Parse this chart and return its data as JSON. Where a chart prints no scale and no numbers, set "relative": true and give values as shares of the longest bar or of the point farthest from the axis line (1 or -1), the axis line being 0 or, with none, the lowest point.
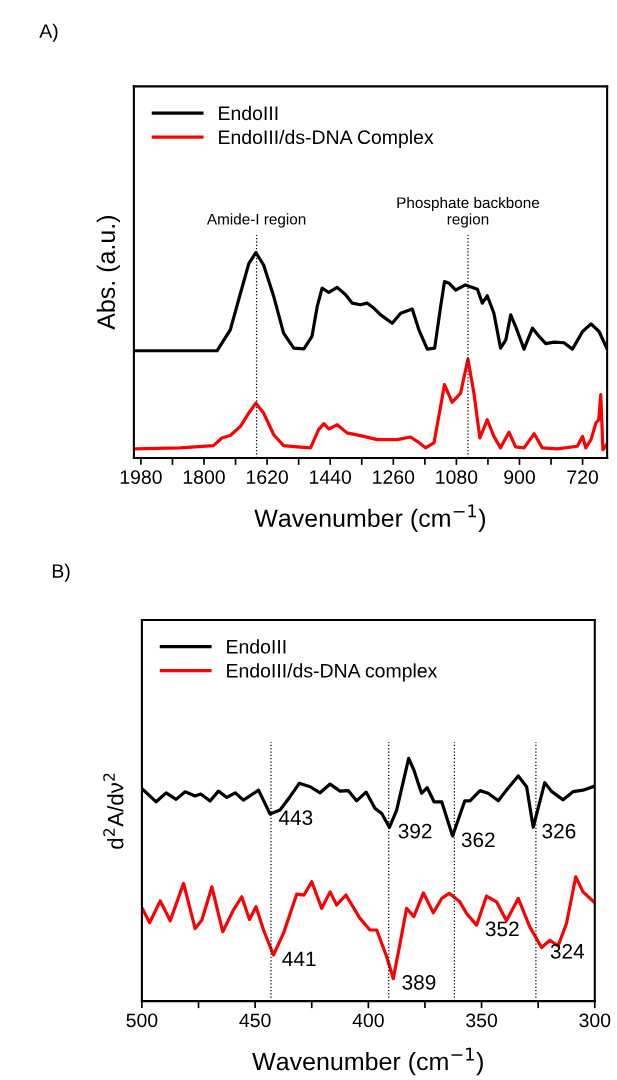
{
  "chart_data": [
    {
      "type": "line",
      "title": "A)",
      "xlabel": "Wavenumber (cm$^{−1}$)",
      "ylabel": "Abs. (a.u.)",
      "relative": true,
      "xlim": [
        2000,
        650
      ],
      "xticks": [
        1980,
        {
          "value": 1890,
          "label": null
        },
        1800,
        {
          "value": 1710,
          "label": null
        },
        1620,
        {
          "value": 1530,
          "label": null
        },
        1440,
        {
          "value": 1350,
          "label": null
        },
        1260,
        {
          "value": 1170,
          "label": null
        },
        1080,
        {
          "value": 990,
          "label": null
        },
        900,
        {
          "value": 810,
          "label": null
        },
        720
      ],
      "legend": "top left",
      "grid": false,
      "line_style": "solid",
      "ref_lines": [
        {
          "axis": "x",
          "value": 1650,
          "label": "Amide-I region",
          "line_style": "dotted",
          "color": "#000000"
        },
        {
          "axis": "x",
          "value": 1047,
          "label": "Phosphate backbone\nregion",
          "line_style": "dotted",
          "color": "#000000"
        }
      ],
      "series": [
        {
          "name": "EndoIII",
          "color": "#000000",
          "x": [
            1996,
            1763,
            1725,
            1696,
            1672,
            1652,
            1630,
            1601,
            1573,
            1544,
            1515,
            1492,
            1477,
            1463,
            1444,
            1420,
            1396,
            1377,
            1354,
            1334,
            1315,
            1296,
            1263,
            1239,
            1206,
            1187,
            1163,
            1142,
            1125,
            1114,
            1101,
            1082,
            1054,
            1020,
            1006,
            992,
            973,
            954,
            939,
            925,
            911,
            887,
            863,
            844,
            825,
            801,
            773,
            749,
            720,
            696,
            673,
            651
          ],
          "values": [
            0.522,
            0.522,
            0.624,
            0.802,
            0.948,
            1.0,
            0.94,
            0.786,
            0.608,
            0.535,
            0.531,
            0.592,
            0.738,
            0.827,
            0.806,
            0.831,
            0.795,
            0.754,
            0.746,
            0.754,
            0.729,
            0.697,
            0.656,
            0.705,
            0.725,
            0.624,
            0.53,
            0.535,
            0.737,
            0.859,
            0.851,
            0.818,
            0.843,
            0.822,
            0.754,
            0.79,
            0.705,
            0.535,
            0.575,
            0.697,
            0.64,
            0.53,
            0.632,
            0.592,
            0.557,
            0.564,
            0.561,
            0.53,
            0.616,
            0.653,
            0.616,
            0.535
          ]
        },
        {
          "name": "EndoIII/ds-DNA Complex",
          "color": "#ff0000",
          "x": [
            1996,
            1868,
            1773,
            1749,
            1725,
            1696,
            1672,
            1652,
            1630,
            1601,
            1573,
            1534,
            1496,
            1473,
            1458,
            1444,
            1420,
            1392,
            1344,
            1306,
            1249,
            1211,
            1192,
            1168,
            1144,
            1125,
            1114,
            1092,
            1068,
            1047,
            1030,
            1013,
            992,
            973,
            954,
            930,
            911,
            887,
            858,
            835,
            792,
            735,
            720,
            711,
            696,
            682,
            674,
            668,
            662,
            651
          ],
          "values": [
            0.044,
            0.049,
            0.06,
            0.097,
            0.109,
            0.154,
            0.219,
            0.267,
            0.219,
            0.113,
            0.06,
            0.054,
            0.049,
            0.138,
            0.167,
            0.141,
            0.162,
            0.122,
            0.105,
            0.089,
            0.089,
            0.102,
            0.081,
            0.049,
            0.073,
            0.251,
            0.357,
            0.271,
            0.316,
            0.481,
            0.316,
            0.097,
            0.186,
            0.105,
            0.049,
            0.125,
            0.054,
            0.049,
            0.118,
            0.049,
            0.044,
            0.057,
            0.105,
            0.049,
            0.089,
            0.17,
            0.186,
            0.308,
            0.04,
            0.065
          ]
        }
      ]
    },
    {
      "type": "line",
      "title": "B)",
      "xlabel": "Wavenumber (cm$^{−1}$)",
      "ylabel": "d$^{2}$A/dν$^{2}$",
      "relative": true,
      "xlim": [
        500,
        300
      ],
      "xticks": [
        500,
        {
          "value": 475,
          "label": null
        },
        450,
        {
          "value": 425,
          "label": null
        },
        400,
        {
          "value": 375,
          "label": null
        },
        350,
        {
          "value": 325,
          "label": null
        },
        300
      ],
      "legend": "top left",
      "grid": false,
      "line_style": "solid",
      "ref_lines": [
        {
          "axis": "x",
          "value": 443,
          "line_style": "dotted",
          "color": "#000000"
        },
        {
          "axis": "x",
          "value": 391,
          "line_style": "dotted",
          "color": "#000000"
        },
        {
          "axis": "x",
          "value": 362,
          "line_style": "dotted",
          "color": "#000000"
        },
        {
          "axis": "x",
          "value": 326,
          "line_style": "dotted",
          "color": "#000000"
        }
      ],
      "annotations": [
        {
          "text": "443",
          "x": 443.4,
          "y": 0.771
        },
        {
          "text": "392",
          "x": 390.7,
          "y": 0.716
        },
        {
          "text": "362",
          "x": 362.8,
          "y": 0.68
        },
        {
          "text": "326",
          "x": 327.2,
          "y": 0.716
        },
        {
          "text": "441",
          "x": 441.9,
          "y": 0.19
        },
        {
          "text": "389",
          "x": 389.0,
          "y": 0.093
        },
        {
          "text": "352",
          "x": 352.2,
          "y": 0.313
        },
        {
          "text": "324",
          "x": 323.5,
          "y": 0.221
        }
      ],
      "series": [
        {
          "name": "EndoIII",
          "color": "#000000",
          "x": [
            499.6,
            493.7,
            489.3,
            484.9,
            480.9,
            476.5,
            474.0,
            469.9,
            466.2,
            462.5,
            458.8,
            455.2,
            448.5,
            443.4,
            439.0,
            434.6,
            430.5,
            425.7,
            421.3,
            416.9,
            412.5,
            408.8,
            405.2,
            401.0,
            397.1,
            394.1,
            390.7,
            387.5,
            382.2,
            379.9,
            376.5,
            374.0,
            371.0,
            367.6,
            362.8,
            357.4,
            355.1,
            350.7,
            347.1,
            342.6,
            339.0,
            333.8,
            330.1,
            327.2,
            322.1,
            319.1,
            314.0,
            309.5,
            305.2,
            300.0
          ],
          "values": [
            0.872,
            0.821,
            0.858,
            0.831,
            0.862,
            0.845,
            0.853,
            0.824,
            0.865,
            0.839,
            0.858,
            0.828,
            0.869,
            0.771,
            0.787,
            0.842,
            0.897,
            0.883,
            0.858,
            0.894,
            0.865,
            0.867,
            0.825,
            0.861,
            0.794,
            0.773,
            0.716,
            0.787,
            1.0,
            0.952,
            0.856,
            0.879,
            0.821,
            0.821,
            0.68,
            0.825,
            0.825,
            0.867,
            0.856,
            0.825,
            0.869,
            0.927,
            0.883,
            0.716,
            0.9,
            0.864,
            0.829,
            0.863,
            0.869,
            0.886
          ]
        },
        {
          "name": "EndoIII/ds-DNA complex",
          "color": "#ff0000",
          "x": [
            499.6,
            496.6,
            491.9,
            487.5,
            481.6,
            476.5,
            473.5,
            469.1,
            464.3,
            459.6,
            455.9,
            452.5,
            449.6,
            446.3,
            441.9,
            437.5,
            431.6,
            428.4,
            425.0,
            420.6,
            416.9,
            414.0,
            409.9,
            403.7,
            399.3,
            396.3,
            391.9,
            389.0,
            386.0,
            383.1,
            379.9,
            375.7,
            371.3,
            367.6,
            364.3,
            359.6,
            356.6,
            352.2,
            347.8,
            343.4,
            339.0,
            333.8,
            328.7,
            323.5,
            319.8,
            316.2,
            312.5,
            308.4,
            305.2,
            300.0
          ],
          "values": [
            0.378,
            0.323,
            0.413,
            0.331,
            0.485,
            0.299,
            0.334,
            0.471,
            0.286,
            0.375,
            0.43,
            0.336,
            0.389,
            0.293,
            0.19,
            0.279,
            0.441,
            0.437,
            0.492,
            0.382,
            0.45,
            0.396,
            0.437,
            0.341,
            0.293,
            0.293,
            0.183,
            0.093,
            0.238,
            0.382,
            0.348,
            0.446,
            0.364,
            0.423,
            0.444,
            0.409,
            0.361,
            0.313,
            0.433,
            0.409,
            0.331,
            0.423,
            0.306,
            0.221,
            0.251,
            0.227,
            0.32,
            0.512,
            0.45,
            0.405
          ]
        }
      ]
    }
  ]
}
